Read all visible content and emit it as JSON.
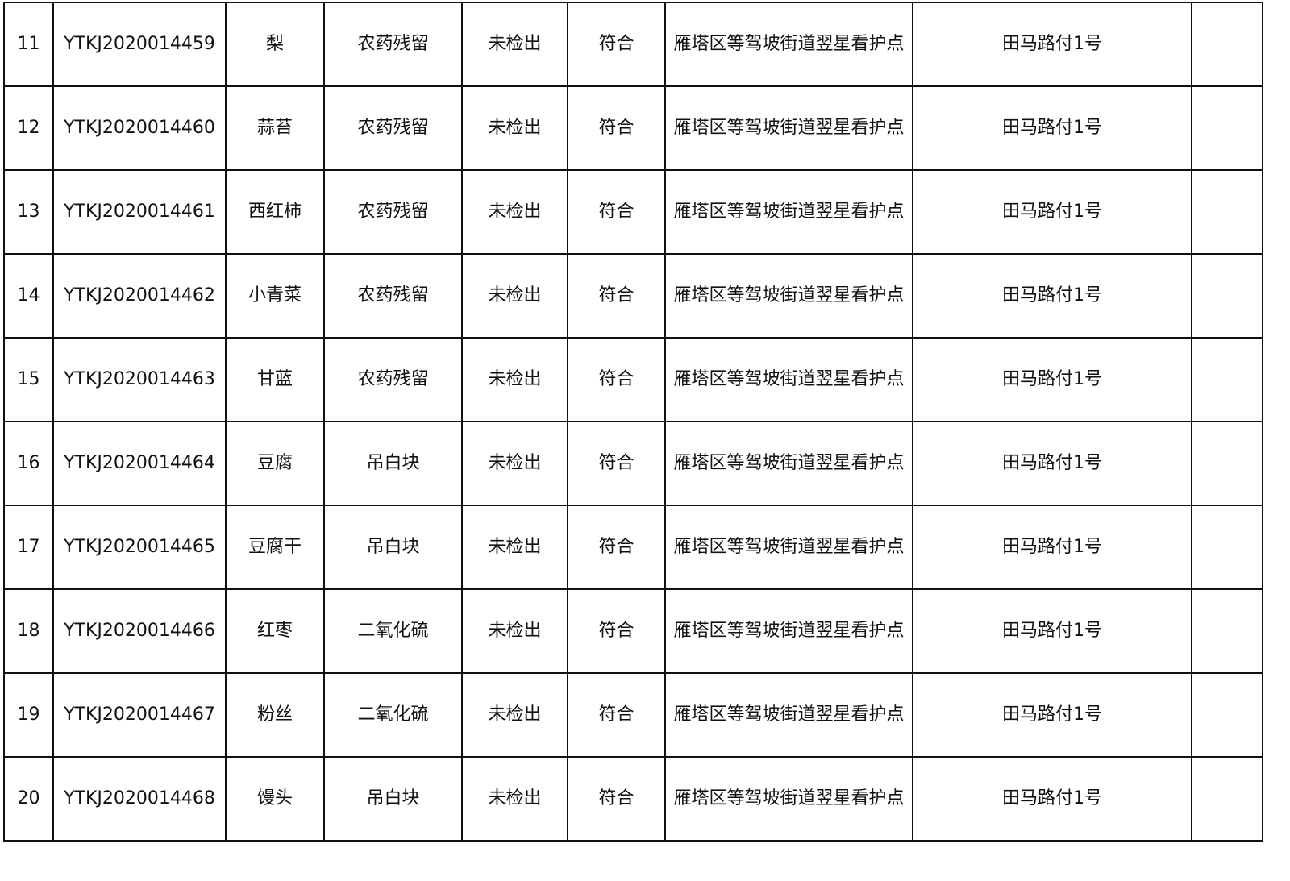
{
  "rows": [
    {
      "no": "11",
      "code": "YTKJ2020014459",
      "sample": "梨",
      "item": "农药残留",
      "result": "未检出",
      "judgement": "符合",
      "location": "雁塔区等驾坡街道翌星看护点",
      "address": "田马路付1号",
      "note": ""
    },
    {
      "no": "12",
      "code": "YTKJ2020014460",
      "sample": "蒜苔",
      "item": "农药残留",
      "result": "未检出",
      "judgement": "符合",
      "location": "雁塔区等驾坡街道翌星看护点",
      "address": "田马路付1号",
      "note": ""
    },
    {
      "no": "13",
      "code": "YTKJ2020014461",
      "sample": "西红柿",
      "item": "农药残留",
      "result": "未检出",
      "judgement": "符合",
      "location": "雁塔区等驾坡街道翌星看护点",
      "address": "田马路付1号",
      "note": ""
    },
    {
      "no": "14",
      "code": "YTKJ2020014462",
      "sample": "小青菜",
      "item": "农药残留",
      "result": "未检出",
      "judgement": "符合",
      "location": "雁塔区等驾坡街道翌星看护点",
      "address": "田马路付1号",
      "note": ""
    },
    {
      "no": "15",
      "code": "YTKJ2020014463",
      "sample": "甘蓝",
      "item": "农药残留",
      "result": "未检出",
      "judgement": "符合",
      "location": "雁塔区等驾坡街道翌星看护点",
      "address": "田马路付1号",
      "note": ""
    },
    {
      "no": "16",
      "code": "YTKJ2020014464",
      "sample": "豆腐",
      "item": "吊白块",
      "result": "未检出",
      "judgement": "符合",
      "location": "雁塔区等驾坡街道翌星看护点",
      "address": "田马路付1号",
      "note": ""
    },
    {
      "no": "17",
      "code": "YTKJ2020014465",
      "sample": "豆腐干",
      "item": "吊白块",
      "result": "未检出",
      "judgement": "符合",
      "location": "雁塔区等驾坡街道翌星看护点",
      "address": "田马路付1号",
      "note": ""
    },
    {
      "no": "18",
      "code": "YTKJ2020014466",
      "sample": "红枣",
      "item": "二氧化硫",
      "result": "未检出",
      "judgement": "符合",
      "location": "雁塔区等驾坡街道翌星看护点",
      "address": "田马路付1号",
      "note": ""
    },
    {
      "no": "19",
      "code": "YTKJ2020014467",
      "sample": "粉丝",
      "item": "二氧化硫",
      "result": "未检出",
      "judgement": "符合",
      "location": "雁塔区等驾坡街道翌星看护点",
      "address": "田马路付1号",
      "note": ""
    },
    {
      "no": "20",
      "code": "YTKJ2020014468",
      "sample": "馒头",
      "item": "吊白块",
      "result": "未检出",
      "judgement": "符合",
      "location": "雁塔区等驾坡街道翌星看护点",
      "address": "田马路付1号",
      "note": ""
    }
  ]
}
